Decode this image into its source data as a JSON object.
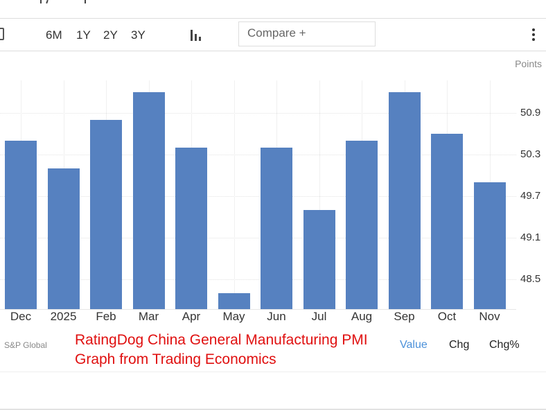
{
  "toolbar": {
    "ranges": [
      "6M",
      "1Y",
      "2Y",
      "3Y"
    ],
    "compare_placeholder": "Compare +",
    "icons": {
      "calendar": "calendar-icon",
      "chart_type": "bar-chart-icon",
      "more": "more-vertical-icon"
    }
  },
  "chart": {
    "units": "Points",
    "bar_color": "#5681c0"
  },
  "footer": {
    "source": "S&P Global",
    "caption_line1": "RatingDog China General Manufacturing PMI",
    "caption_line2": "Graph from Trading Economics",
    "tabs": [
      {
        "label": "Value",
        "active": true,
        "color": "#4a90d9"
      },
      {
        "label": "Chg",
        "active": false,
        "color": "#222222"
      },
      {
        "label": "Chg%",
        "active": false,
        "color": "#222222"
      }
    ]
  },
  "chart_data": {
    "type": "bar",
    "title": "RatingDog China General Manufacturing PMI",
    "xlabel": "",
    "ylabel": "Points",
    "categories": [
      "Dec",
      "2025",
      "Feb",
      "Mar",
      "Apr",
      "May",
      "Jun",
      "Jul",
      "Aug",
      "Sep",
      "Oct",
      "Nov"
    ],
    "values": [
      50.5,
      50.1,
      50.8,
      51.2,
      50.4,
      48.3,
      50.4,
      49.5,
      50.5,
      51.2,
      50.6,
      49.9
    ],
    "yticks": [
      "48.5",
      "49.1",
      "49.7",
      "50.3",
      "50.9"
    ],
    "ylim": [
      48.07,
      51.37
    ],
    "grid": true,
    "legend": "none",
    "source": "S&P Global"
  }
}
